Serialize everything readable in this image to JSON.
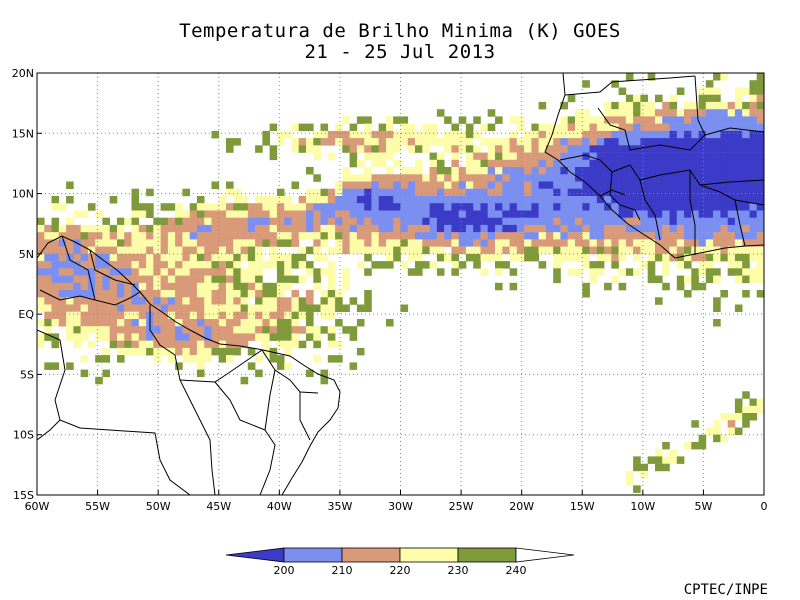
{
  "title": "Temperatura de Brilho Minima (K) GOES",
  "subtitle": "21 - 25 Jul 2013",
  "credit": "CPTEC/INPE",
  "chart_data": {
    "type": "heatmap",
    "variable": "Minimum brightness temperature (K)",
    "x_ticks": [
      "60W",
      "55W",
      "50W",
      "45W",
      "40W",
      "35W",
      "30W",
      "25W",
      "20W",
      "15W",
      "10W",
      "5W",
      "0"
    ],
    "x_values": [
      -60,
      -55,
      -50,
      -45,
      -40,
      -35,
      -30,
      -25,
      -20,
      -15,
      -10,
      -5,
      0
    ],
    "y_ticks": [
      "20N",
      "15N",
      "10N",
      "5N",
      "EQ",
      "5S",
      "10S",
      "15S"
    ],
    "y_values": [
      20,
      15,
      10,
      5,
      0,
      -5,
      -10,
      -15
    ],
    "xlim": [
      -60,
      0
    ],
    "ylim": [
      -15,
      20
    ],
    "grid": true,
    "legend": {
      "placement": "bottom",
      "thresholds": [
        "200",
        "210",
        "220",
        "230",
        "240"
      ],
      "colors": [
        "#3b3bc8",
        "#7b8ff0",
        "#d99a7a",
        "#fdfca8",
        "#7f9a3a"
      ]
    },
    "features": {
      "coastlines": true,
      "country_borders": true,
      "main_convective_band": "ITCZ ~6N-15N from 30W to 0, coldest (<200 K) near 15W-0 at 10N-16N",
      "secondary_band": "Northern South America, 3S-8N, 60W-35W"
    }
  }
}
